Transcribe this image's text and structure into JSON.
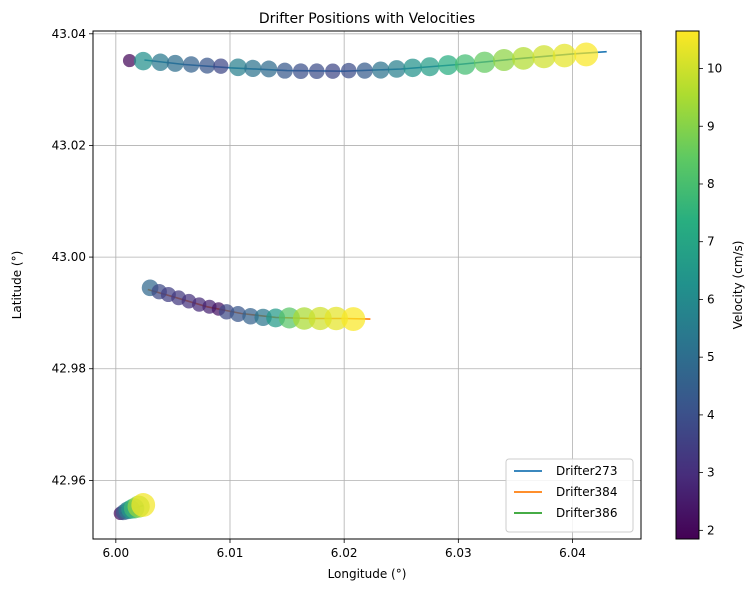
{
  "chart_data": {
    "type": "scatter",
    "title": "Drifter Positions with Velocities",
    "xlabel": "Longitude (°)",
    "ylabel": "Latitude (°)",
    "xlim": [
      5.998,
      6.046
    ],
    "ylim": [
      42.9495,
      43.0405
    ],
    "xticks": [
      6.0,
      6.01,
      6.02,
      6.03,
      6.04
    ],
    "yticks": [
      42.96,
      42.98,
      43.0,
      43.02,
      43.04
    ],
    "xtick_labels": [
      "6.00",
      "6.01",
      "6.02",
      "6.03",
      "6.04"
    ],
    "ytick_labels": [
      "42.96",
      "42.98",
      "43.00",
      "43.02",
      "43.04"
    ],
    "grid": true,
    "legend_position": "lower-right",
    "colorbar": {
      "label": "Velocity (cm/s)",
      "range": [
        1.85,
        10.65
      ],
      "ticks": [
        2,
        3,
        4,
        5,
        6,
        7,
        8,
        9,
        10
      ],
      "tick_labels": [
        "2",
        "3",
        "4",
        "5",
        "6",
        "7",
        "8",
        "9",
        "10"
      ],
      "colormap": "viridis"
    },
    "series": [
      {
        "name": "Drifter273",
        "line_color": "#1f77b4",
        "line": [
          [
            6.0025,
            43.0353
          ],
          [
            6.006,
            43.0345
          ],
          [
            6.01,
            43.0339
          ],
          [
            6.015,
            43.0334
          ],
          [
            6.02,
            43.0333
          ],
          [
            6.025,
            43.0337
          ],
          [
            6.03,
            43.0345
          ],
          [
            6.035,
            43.0355
          ],
          [
            6.04,
            43.0364
          ],
          [
            6.043,
            43.0368
          ]
        ],
        "points": [
          {
            "lon": 6.0012,
            "lat": 43.0352,
            "velocity": 2.0
          },
          {
            "lon": 6.0024,
            "lat": 43.0351,
            "velocity": 6.2
          },
          {
            "lon": 6.0039,
            "lat": 43.0349,
            "velocity": 5.4
          },
          {
            "lon": 6.0052,
            "lat": 43.0347,
            "velocity": 5.0
          },
          {
            "lon": 6.0066,
            "lat": 43.0345,
            "velocity": 4.6
          },
          {
            "lon": 6.008,
            "lat": 43.0343,
            "velocity": 4.2
          },
          {
            "lon": 6.0092,
            "lat": 43.0342,
            "velocity": 3.7
          },
          {
            "lon": 6.0107,
            "lat": 43.034,
            "velocity": 5.6
          },
          {
            "lon": 6.012,
            "lat": 43.0338,
            "velocity": 5.2
          },
          {
            "lon": 6.0134,
            "lat": 43.0337,
            "velocity": 4.9
          },
          {
            "lon": 6.0148,
            "lat": 43.0334,
            "velocity": 4.3
          },
          {
            "lon": 6.0162,
            "lat": 43.0333,
            "velocity": 4.0
          },
          {
            "lon": 6.0176,
            "lat": 43.0333,
            "velocity": 3.9
          },
          {
            "lon": 6.019,
            "lat": 43.0333,
            "velocity": 3.7
          },
          {
            "lon": 6.0204,
            "lat": 43.0334,
            "velocity": 3.9
          },
          {
            "lon": 6.0218,
            "lat": 43.0334,
            "velocity": 4.4
          },
          {
            "lon": 6.0232,
            "lat": 43.0335,
            "velocity": 5.2
          },
          {
            "lon": 6.0246,
            "lat": 43.0337,
            "velocity": 5.6
          },
          {
            "lon": 6.026,
            "lat": 43.0339,
            "velocity": 6.3
          },
          {
            "lon": 6.0275,
            "lat": 43.0341,
            "velocity": 6.7
          },
          {
            "lon": 6.0291,
            "lat": 43.0344,
            "velocity": 7.3
          },
          {
            "lon": 6.0306,
            "lat": 43.0345,
            "velocity": 7.9
          },
          {
            "lon": 6.0323,
            "lat": 43.0349,
            "velocity": 8.5
          },
          {
            "lon": 6.034,
            "lat": 43.0353,
            "velocity": 9.1
          },
          {
            "lon": 6.0357,
            "lat": 43.0356,
            "velocity": 9.6
          },
          {
            "lon": 6.0375,
            "lat": 43.0359,
            "velocity": 10.0
          },
          {
            "lon": 6.0393,
            "lat": 43.0361,
            "velocity": 10.3
          },
          {
            "lon": 6.0412,
            "lat": 43.0363,
            "velocity": 10.6
          }
        ]
      },
      {
        "name": "Drifter384",
        "line_color": "#ff7f0e",
        "line": [
          [
            6.0028,
            42.9942
          ],
          [
            6.005,
            42.9929
          ],
          [
            6.008,
            42.9911
          ],
          [
            6.011,
            42.9899
          ],
          [
            6.014,
            42.9892
          ],
          [
            6.017,
            42.989
          ],
          [
            6.02,
            42.989
          ],
          [
            6.0223,
            42.9889
          ]
        ],
        "points": [
          {
            "lon": 6.003,
            "lat": 42.9945,
            "velocity": 4.8
          },
          {
            "lon": 6.0038,
            "lat": 42.9938,
            "velocity": 3.8
          },
          {
            "lon": 6.0046,
            "lat": 42.9933,
            "velocity": 3.5
          },
          {
            "lon": 6.0055,
            "lat": 42.9927,
            "velocity": 3.3
          },
          {
            "lon": 6.0064,
            "lat": 42.9921,
            "velocity": 3.1
          },
          {
            "lon": 6.0073,
            "lat": 42.9915,
            "velocity": 2.9
          },
          {
            "lon": 6.0082,
            "lat": 42.9911,
            "velocity": 2.7
          },
          {
            "lon": 6.009,
            "lat": 42.9907,
            "velocity": 2.3
          },
          {
            "lon": 6.0097,
            "lat": 42.9902,
            "velocity": 3.8
          },
          {
            "lon": 6.0107,
            "lat": 42.9898,
            "velocity": 4.2
          },
          {
            "lon": 6.0118,
            "lat": 42.9894,
            "velocity": 4.6
          },
          {
            "lon": 6.0129,
            "lat": 42.9892,
            "velocity": 5.3
          },
          {
            "lon": 6.014,
            "lat": 42.9891,
            "velocity": 6.6
          },
          {
            "lon": 6.0152,
            "lat": 42.9891,
            "velocity": 8.3
          },
          {
            "lon": 6.0165,
            "lat": 42.989,
            "velocity": 9.5
          },
          {
            "lon": 6.0179,
            "lat": 42.989,
            "velocity": 10.0
          },
          {
            "lon": 6.0193,
            "lat": 42.989,
            "velocity": 10.3
          },
          {
            "lon": 6.0208,
            "lat": 42.9889,
            "velocity": 10.6
          }
        ]
      },
      {
        "name": "Drifter386",
        "line_color": "#2ca02c",
        "line": [
          [
            6.0004,
            42.9541
          ],
          [
            6.001,
            42.9546
          ],
          [
            6.0016,
            42.955
          ],
          [
            6.0024,
            42.9555
          ]
        ],
        "points": [
          {
            "lon": 6.0004,
            "lat": 42.9541,
            "velocity": 2.2
          },
          {
            "lon": 6.0007,
            "lat": 42.9543,
            "velocity": 4.2
          },
          {
            "lon": 6.001,
            "lat": 42.9546,
            "velocity": 5.5
          },
          {
            "lon": 6.0013,
            "lat": 42.9548,
            "velocity": 6.6
          },
          {
            "lon": 6.0016,
            "lat": 42.955,
            "velocity": 7.8
          },
          {
            "lon": 6.002,
            "lat": 42.9553,
            "velocity": 9.2
          },
          {
            "lon": 6.0024,
            "lat": 42.9556,
            "velocity": 10.5
          }
        ]
      }
    ]
  }
}
